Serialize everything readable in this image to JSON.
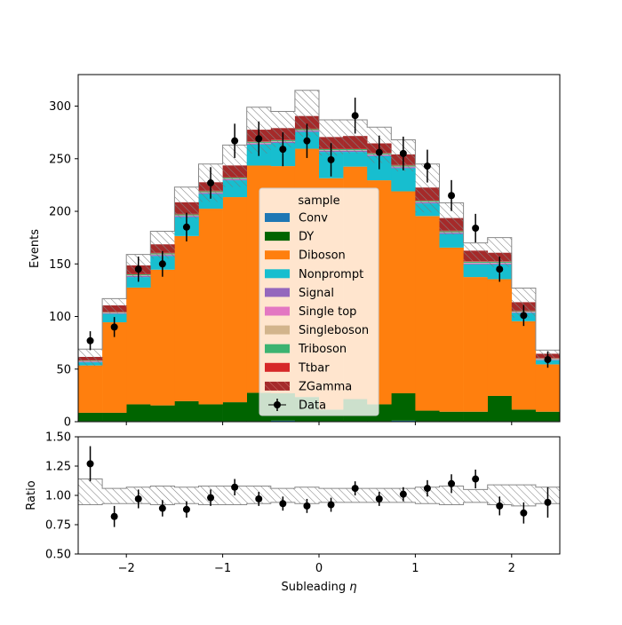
{
  "chart_data": [
    {
      "type": "bar",
      "subtype": "stacked-histogram-with-data-points",
      "xlabel": "",
      "ylabel": "Events",
      "xlim": [
        -2.5,
        2.5
      ],
      "ylim": [
        0,
        330
      ],
      "yticks": [
        "0",
        "50",
        "100",
        "150",
        "200",
        "250",
        "300"
      ],
      "ytick_values": [
        0,
        50,
        100,
        150,
        200,
        250,
        300
      ],
      "bin_edges": [
        -2.5,
        -2.25,
        -2.0,
        -1.75,
        -1.5,
        -1.25,
        -1.0,
        -0.75,
        -0.5,
        -0.25,
        0.0,
        0.25,
        0.5,
        0.75,
        1.0,
        1.25,
        1.5,
        1.75,
        2.0,
        2.25,
        2.5
      ],
      "legend": {
        "title": "sample",
        "placement": "center",
        "entries": [
          "Conv",
          "DY",
          "Diboson",
          "Nonprompt",
          "Signal",
          "Single top",
          "Singleboson",
          "Triboson",
          "Ttbar",
          "ZGamma",
          "Data"
        ]
      },
      "series": [
        {
          "name": "Conv",
          "color": "#1f77b4",
          "values": [
            0.5,
            0.5,
            0.5,
            0.5,
            0.5,
            0.5,
            0.5,
            0.5,
            1,
            0.5,
            0.5,
            0.5,
            0.5,
            1,
            0.5,
            0.5,
            0.5,
            0.5,
            0.5,
            0.5
          ]
        },
        {
          "name": "DY",
          "color": "#006400",
          "values": [
            8,
            8,
            16,
            15,
            19,
            16,
            18,
            27,
            26,
            23,
            11,
            21,
            16,
            26,
            10,
            9,
            9,
            24,
            11,
            9
          ]
        },
        {
          "name": "Diboson",
          "color": "#ff7f0e",
          "values": [
            45,
            86,
            111,
            129,
            157,
            186,
            195,
            216,
            216,
            236,
            220,
            221,
            213,
            192,
            185,
            156,
            128,
            111,
            84,
            45
          ]
        },
        {
          "name": "Nonprompt",
          "color": "#17becf",
          "values": [
            3,
            8,
            10,
            13,
            18,
            14,
            16,
            20,
            22,
            16,
            25,
            14,
            23,
            22,
            12,
            13,
            12,
            14,
            8,
            4
          ]
        },
        {
          "name": "Signal",
          "color": "#9467bd",
          "values": [
            0.5,
            0.5,
            1,
            1,
            1,
            1,
            1,
            1,
            1,
            1,
            1,
            1,
            1,
            1,
            1,
            1,
            1,
            1,
            0.5,
            0.5
          ]
        },
        {
          "name": "Single top",
          "color": "#e377c2",
          "values": [
            0.3,
            0.3,
            0.3,
            0.3,
            0.3,
            0.3,
            0.3,
            0.3,
            0.3,
            0.3,
            0.3,
            0.3,
            0.3,
            0.3,
            0.3,
            0.3,
            0.3,
            0.3,
            0.3,
            0.3
          ]
        },
        {
          "name": "Singleboson",
          "color": "#d2b48c",
          "values": [
            0.3,
            0.3,
            0.3,
            0.3,
            0.3,
            0.3,
            0.3,
            0.3,
            0.3,
            0.3,
            0.3,
            0.3,
            0.3,
            0.3,
            0.3,
            0.3,
            0.3,
            0.3,
            0.3,
            0.3
          ]
        },
        {
          "name": "Triboson",
          "color": "#3cb371",
          "values": [
            0.5,
            0.5,
            1,
            1,
            1,
            1,
            1,
            1,
            1,
            1,
            1,
            1,
            1,
            1,
            1,
            1,
            1,
            1,
            0.5,
            0.5
          ]
        },
        {
          "name": "Ttbar",
          "color": "#d62728",
          "values": [
            0.5,
            0.5,
            0.5,
            0.5,
            0.5,
            0.5,
            0.5,
            0.5,
            0.5,
            0.5,
            0.5,
            0.5,
            0.5,
            0.5,
            0.5,
            0.5,
            0.5,
            0.5,
            0.5,
            0.5
          ]
        },
        {
          "name": "ZGamma",
          "color": "#a52a2a",
          "values": [
            3,
            6,
            8,
            8,
            11,
            8,
            11,
            11,
            11,
            12,
            11,
            12,
            9,
            10,
            12,
            12,
            10,
            8,
            8,
            4
          ]
        }
      ],
      "mc_total": [
        61,
        110,
        148,
        168,
        208,
        227,
        243,
        277,
        278,
        293,
        270,
        271,
        263,
        253,
        222,
        193,
        162,
        161,
        113,
        64
      ],
      "mc_unc_total": [
        69,
        117,
        159,
        181,
        223,
        245,
        263,
        299,
        295,
        315,
        287,
        287,
        280,
        268,
        245,
        208,
        170,
        175,
        127,
        68
      ],
      "data_points": {
        "name": "Data",
        "values": [
          77,
          90,
          145,
          150,
          185,
          227,
          267,
          269,
          259,
          267,
          249,
          291,
          256,
          255,
          243,
          215,
          184,
          145,
          101,
          59
        ],
        "errors": [
          9,
          9.5,
          12,
          12.2,
          13.6,
          15,
          16.3,
          16.4,
          16.1,
          16.3,
          15.8,
          17.1,
          16,
          16,
          15.6,
          14.7,
          13.6,
          12,
          10,
          7.7
        ]
      }
    },
    {
      "type": "scatter",
      "subtype": "ratio-panel",
      "xlabel": "Subleading $\\eta$",
      "ylabel": "Ratio",
      "xlim": [
        -2.5,
        2.5
      ],
      "ylim": [
        0.5,
        1.5
      ],
      "yticks": [
        "0.50",
        "0.75",
        "1.00",
        "1.25",
        "1.50"
      ],
      "ytick_values": [
        0.5,
        0.75,
        1.0,
        1.25,
        1.5
      ],
      "xticks": [
        "−2",
        "−1",
        "0",
        "1",
        "2"
      ],
      "xtick_values": [
        -2,
        -1,
        0,
        1,
        2
      ],
      "x": [
        -2.375,
        -2.125,
        -1.875,
        -1.625,
        -1.375,
        -1.125,
        -0.875,
        -0.625,
        -0.375,
        -0.125,
        0.125,
        0.375,
        0.625,
        0.875,
        1.125,
        1.375,
        1.625,
        1.875,
        2.125,
        2.375
      ],
      "values": [
        1.27,
        0.82,
        0.97,
        0.89,
        0.88,
        0.98,
        1.07,
        0.97,
        0.93,
        0.91,
        0.92,
        1.06,
        0.97,
        1.01,
        1.06,
        1.1,
        1.14,
        0.91,
        0.85,
        0.94
      ],
      "errors": [
        0.15,
        0.09,
        0.08,
        0.07,
        0.07,
        0.07,
        0.07,
        0.06,
        0.06,
        0.06,
        0.06,
        0.06,
        0.06,
        0.06,
        0.07,
        0.08,
        0.08,
        0.08,
        0.09,
        0.13
      ],
      "band_lo": [
        0.92,
        0.93,
        0.93,
        0.92,
        0.93,
        0.92,
        0.92,
        0.93,
        0.94,
        0.93,
        0.94,
        0.94,
        0.94,
        0.94,
        0.93,
        0.92,
        0.94,
        0.92,
        0.91,
        0.93
      ],
      "band_hi": [
        1.14,
        1.06,
        1.07,
        1.08,
        1.07,
        1.08,
        1.08,
        1.08,
        1.06,
        1.07,
        1.06,
        1.06,
        1.06,
        1.06,
        1.07,
        1.08,
        1.05,
        1.09,
        1.09,
        1.07
      ]
    }
  ]
}
